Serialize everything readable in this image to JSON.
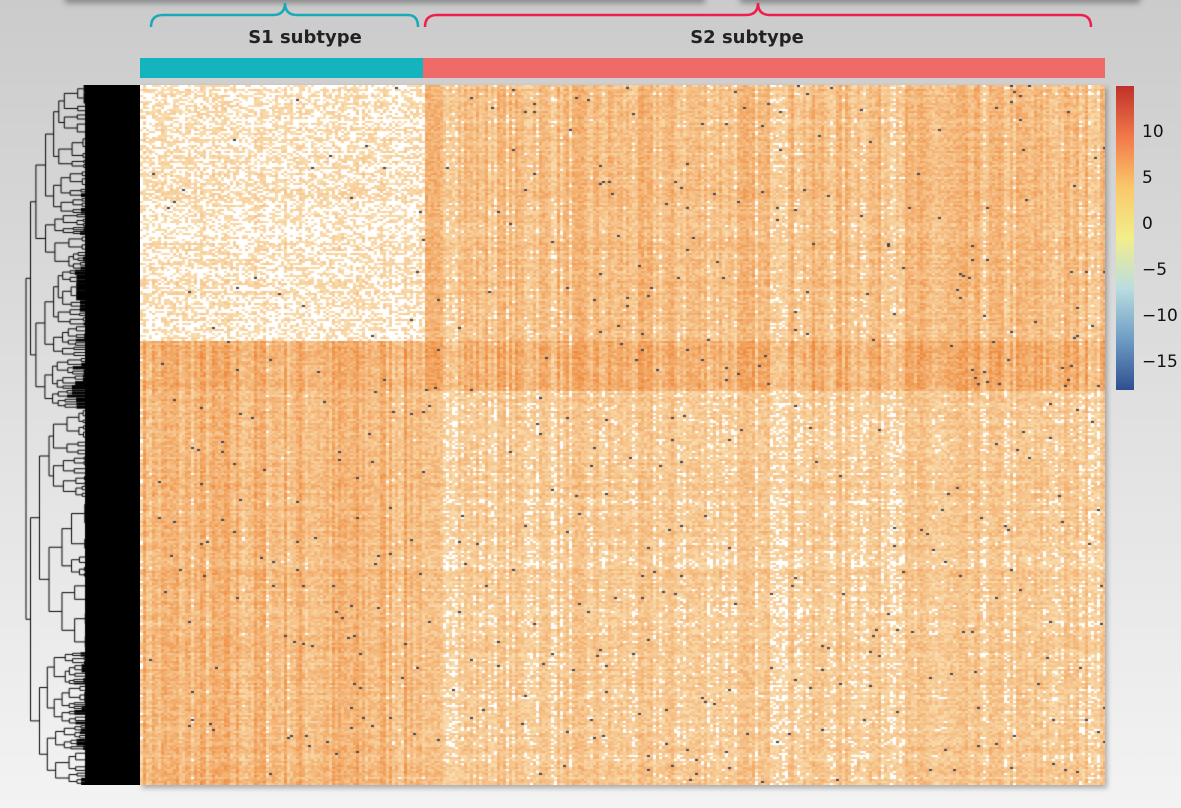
{
  "chart_data": {
    "type": "heatmap",
    "title": "",
    "column_groups": [
      {
        "label": "S1 subtype",
        "color": "#14b4bf",
        "fraction": 0.293
      },
      {
        "label": "S2 subtype",
        "color": "#f16a6a",
        "fraction": 0.707
      }
    ],
    "colorbar": {
      "ticks": [
        10,
        5,
        0,
        -5,
        -10,
        -15
      ],
      "tick_labels": [
        "10",
        "5",
        "0",
        "−5",
        "−10",
        "−15"
      ],
      "range": [
        -18,
        15
      ],
      "colors": [
        "#2f4f8f",
        "#6f9cc4",
        "#b9dde0",
        "#f2ee8a",
        "#f9c86a",
        "#f2784a",
        "#c0302a"
      ]
    },
    "row_dendrogram": true
  },
  "colors": {
    "s1_bracket": "#18aab8",
    "s2_bracket": "#ee1e4e"
  }
}
